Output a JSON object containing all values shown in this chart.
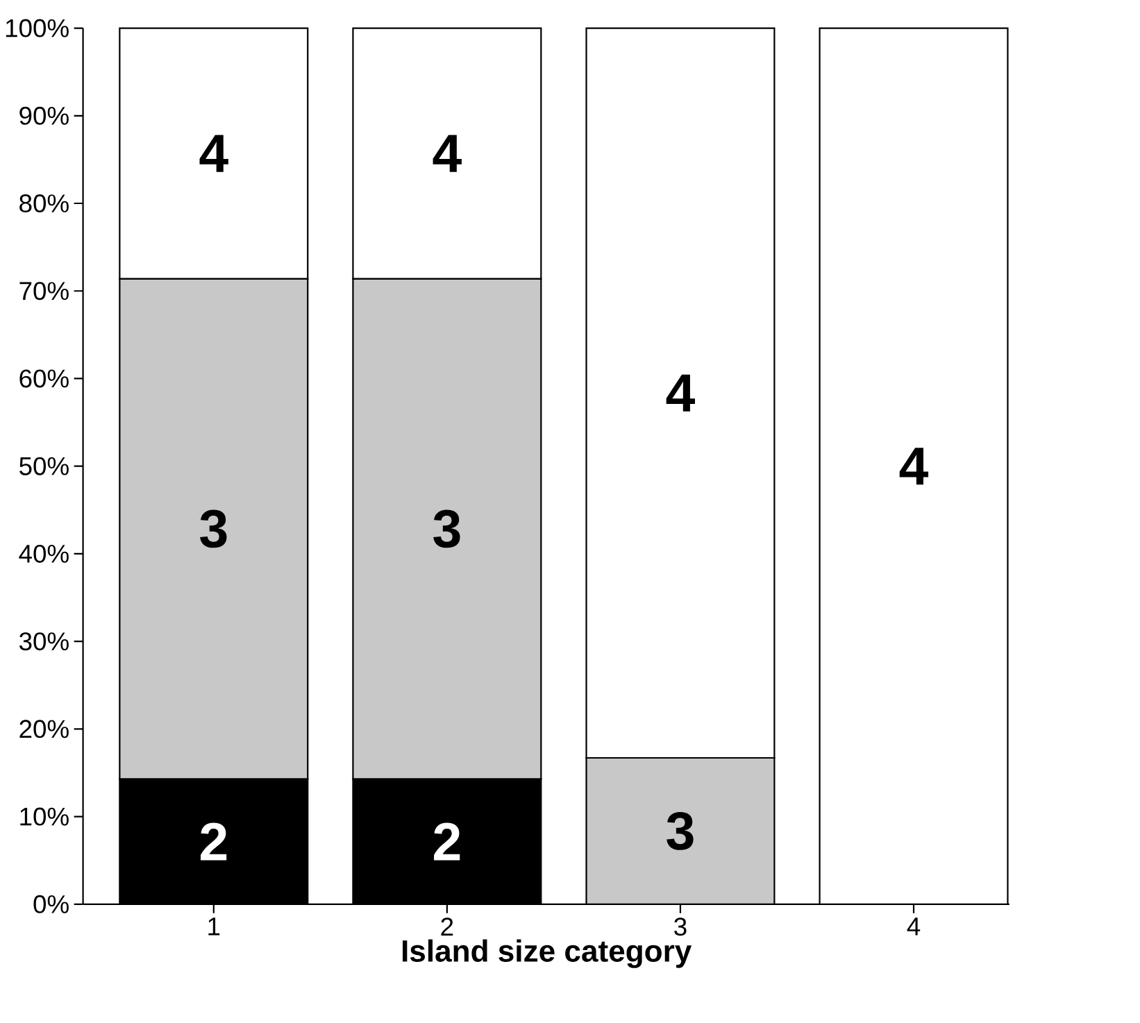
{
  "chart_data": {
    "type": "bar",
    "stacked": true,
    "xlabel": "Island size category",
    "categories": [
      "1",
      "2",
      "3",
      "4"
    ],
    "series": [
      {
        "name": "2",
        "color": "#000000",
        "values": [
          14.3,
          14.3,
          null,
          null
        ]
      },
      {
        "name": "3",
        "color": "#c8c8c8",
        "values": [
          57.1,
          57.1,
          16.7,
          null
        ]
      },
      {
        "name": "4",
        "color": "#ffffff",
        "values": [
          28.6,
          28.6,
          83.3,
          100
        ]
      }
    ],
    "ylim": [
      0,
      100
    ],
    "yticks": [
      {
        "value": 0,
        "label": "0%"
      },
      {
        "value": 10,
        "label": "10%"
      },
      {
        "value": 20,
        "label": "20%"
      },
      {
        "value": 30,
        "label": "30%"
      },
      {
        "value": 40,
        "label": "40%"
      },
      {
        "value": 50,
        "label": "50%"
      },
      {
        "value": 60,
        "label": "60%"
      },
      {
        "value": 70,
        "label": "70%"
      },
      {
        "value": 80,
        "label": "80%"
      },
      {
        "value": 90,
        "label": "90%"
      },
      {
        "value": 100,
        "label": "100%"
      }
    ]
  }
}
